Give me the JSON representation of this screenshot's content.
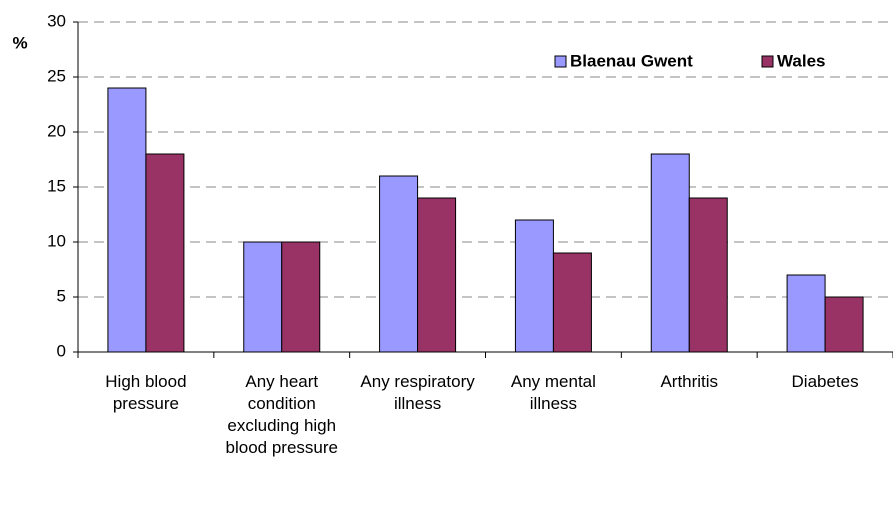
{
  "chart_data": {
    "type": "bar",
    "y_label": "%",
    "categories": [
      "High blood pressure",
      "Any heart condition excluding high blood pressure",
      "Any respiratory illness",
      "Any mental illness",
      "Arthritis",
      "Diabetes"
    ],
    "series": [
      {
        "name": "Blaenau Gwent",
        "color": "#9999ff",
        "values": [
          24,
          10,
          16,
          12,
          18,
          7
        ]
      },
      {
        "name": "Wales",
        "color": "#993366",
        "values": [
          18,
          10,
          14,
          9,
          14,
          5
        ]
      }
    ],
    "ylim": [
      0,
      30
    ],
    "yticks": [
      0,
      5,
      10,
      15,
      20,
      25,
      30
    ],
    "grid": true,
    "legend": "top-right"
  }
}
